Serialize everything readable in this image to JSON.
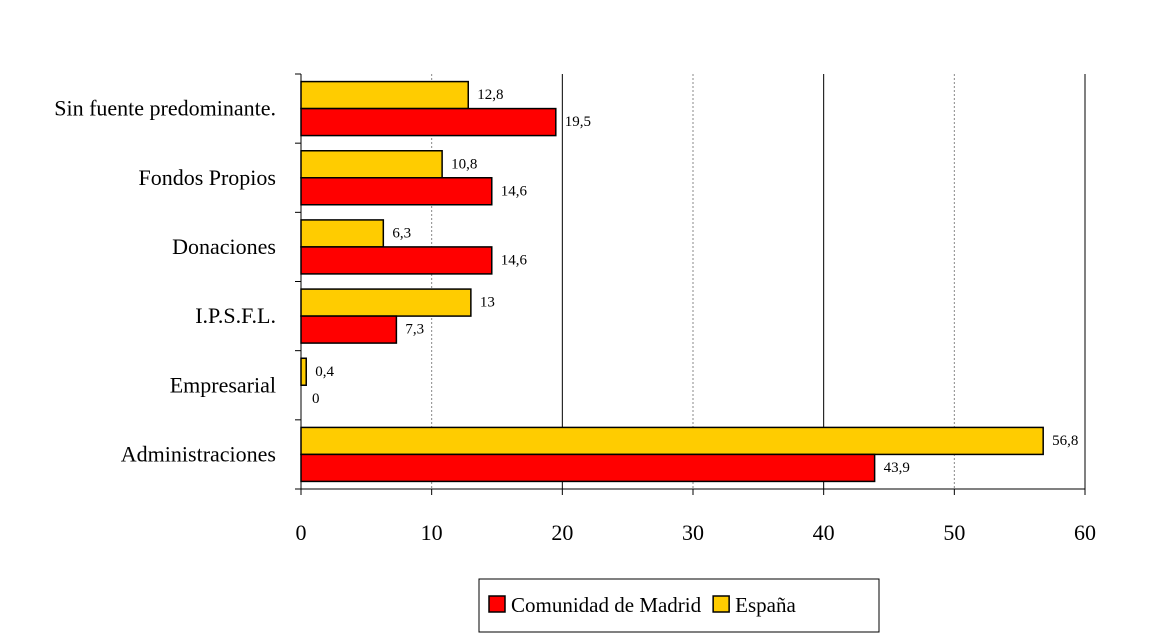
{
  "chart_data": {
    "type": "bar",
    "orientation": "horizontal",
    "categories": [
      "Sin fuente predominante.",
      "Fondos Propios",
      "Donaciones",
      "I.P.S.F.L.",
      "Empresarial",
      "Administraciones"
    ],
    "series": [
      {
        "name": "España",
        "color": "#ffcc00",
        "values": [
          12.8,
          10.8,
          6.3,
          13,
          0.4,
          56.8
        ],
        "labels": [
          "12,8",
          "10,8",
          "6,3",
          "13",
          "0,4",
          "56,8"
        ]
      },
      {
        "name": "Comunidad de Madrid",
        "color": "#ff0000",
        "values": [
          19.5,
          14.6,
          14.6,
          7.3,
          0,
          43.9
        ],
        "labels": [
          "19,5",
          "14,6",
          "14,6",
          "7,3",
          "0",
          "43,9"
        ]
      }
    ],
    "legend_order": [
      "Comunidad de Madrid",
      "España"
    ],
    "xlim": [
      0,
      60
    ],
    "xticks": [
      "0",
      "10",
      "20",
      "30",
      "40",
      "50",
      "60"
    ],
    "grid": true,
    "legend_position": "bottom"
  }
}
